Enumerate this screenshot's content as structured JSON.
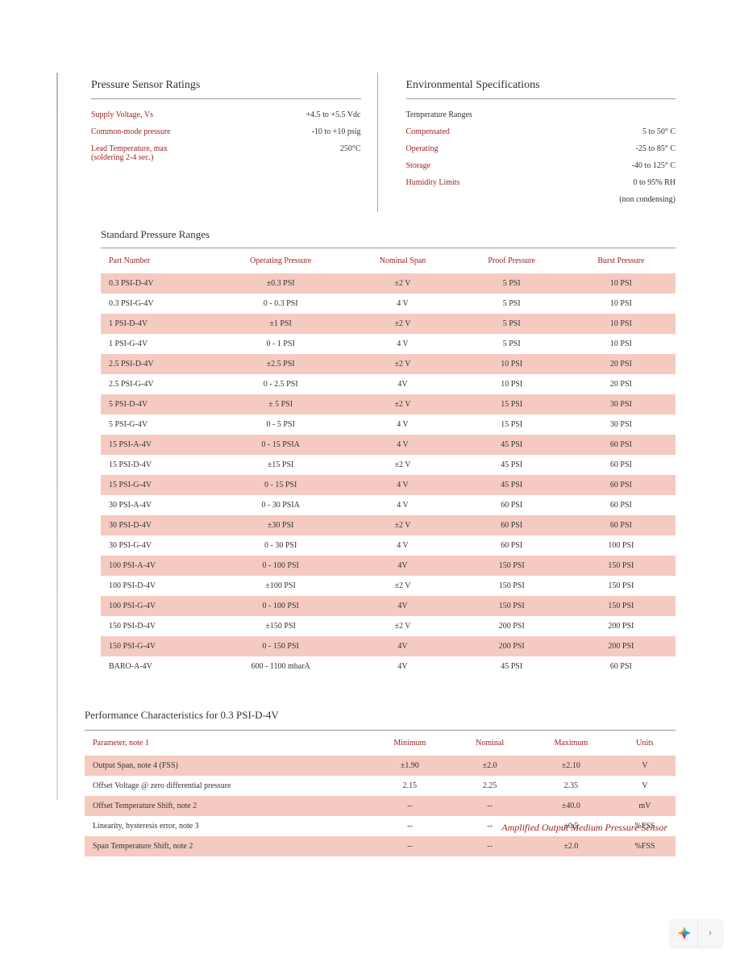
{
  "ratings": {
    "title": "Pressure Sensor Ratings",
    "rows": [
      {
        "label": "Supply Voltage, Vs",
        "value": "+4.5 to +5.5 Vdc"
      },
      {
        "label": "Common-mode pressure",
        "value": "-10 to +10 psig"
      },
      {
        "label": "Lead Temperature, max\n(soldering 2-4 sec.)",
        "value": "250°C"
      }
    ]
  },
  "env": {
    "title": "Environmental Specifications",
    "subhead": "Temperature Ranges",
    "rows": [
      {
        "label": "Compensated",
        "value": "5 to 50° C"
      },
      {
        "label": "Operating",
        "value": "-25 to 85° C"
      },
      {
        "label": "Storage",
        "value": "-40 to 125° C"
      },
      {
        "label": "Humidity Limits",
        "value": "0 to 95% RH"
      }
    ],
    "note": "(non condensing)"
  },
  "ranges": {
    "title": "Standard Pressure Ranges",
    "columns": [
      "Part Number",
      "Operating Pressure",
      "Nominal Span",
      "Proof Pressure",
      "Burst Pressure"
    ],
    "rows": [
      [
        "0.3 PSI-D-4V",
        "±0.3 PSI",
        "±2 V",
        "5 PSI",
        "10 PSI"
      ],
      [
        "0.3 PSI-G-4V",
        "0 - 0.3 PSI",
        "4 V",
        "5 PSI",
        "10 PSI"
      ],
      [
        "1 PSI-D-4V",
        "±1 PSI",
        "±2 V",
        "5 PSI",
        "10 PSI"
      ],
      [
        "1 PSI-G-4V",
        "0 - 1 PSI",
        "4 V",
        "5 PSI",
        "10 PSI"
      ],
      [
        "2.5 PSI-D-4V",
        "±2.5 PSI",
        "±2 V",
        "10 PSI",
        "20 PSI"
      ],
      [
        "2.5 PSI-G-4V",
        "0 - 2.5 PSI",
        "4V",
        "10 PSI",
        "20 PSI"
      ],
      [
        "5 PSI-D-4V",
        "± 5 PSI",
        "±2 V",
        "15 PSI",
        "30 PSI"
      ],
      [
        "5 PSI-G-4V",
        "0 - 5 PSI",
        "4 V",
        "15 PSI",
        "30 PSI"
      ],
      [
        "15 PSI-A-4V",
        "0 - 15 PSIA",
        "4 V",
        "45 PSI",
        "60 PSI"
      ],
      [
        "15 PSI-D-4V",
        "±15 PSI",
        "±2 V",
        "45 PSI",
        "60 PSI"
      ],
      [
        "15 PSI-G-4V",
        "0 - 15 PSI",
        "4 V",
        "45 PSI",
        "60 PSI"
      ],
      [
        "30 PSI-A-4V",
        "0 - 30 PSIA",
        "4 V",
        "60 PSI",
        "60 PSI"
      ],
      [
        "30 PSI-D-4V",
        "±30 PSI",
        "±2 V",
        "60 PSI",
        "60 PSI"
      ],
      [
        "30 PSI-G-4V",
        "0 - 30 PSI",
        "4 V",
        "60 PSI",
        "100 PSI"
      ],
      [
        "100 PSI-A-4V",
        "0 - 100 PSI",
        "4V",
        "150 PSI",
        "150 PSI"
      ],
      [
        "100 PSI-D-4V",
        "±100 PSI",
        "±2 V",
        "150 PSI",
        "150 PSI"
      ],
      [
        "100 PSI-G-4V",
        "0 - 100 PSI",
        "4V",
        "150 PSI",
        "150 PSI"
      ],
      [
        "150 PSI-D-4V",
        "±150 PSI",
        "±2 V",
        "200 PSI",
        "200 PSI"
      ],
      [
        "150 PSI-G-4V",
        "0 - 150 PSI",
        "4V",
        "200 PSI",
        "200 PSI"
      ],
      [
        "BARO-A-4V",
        "600 - 1100 mbarA",
        "4V",
        "45 PSI",
        "60 PSI"
      ]
    ],
    "shaded_indices": [
      0,
      2,
      4,
      6,
      8,
      10,
      12,
      14,
      16,
      18
    ],
    "shade_color": "#f5cbc1"
  },
  "perf": {
    "title": "Performance Characteristics  for 0.3 PSI-D-4V",
    "columns": [
      "Parameter, note 1",
      "Minimum",
      "Nominal",
      "Maximum",
      "Units"
    ],
    "rows": [
      [
        "Output Span, note 4 (FSS)",
        "±1.90",
        "±2.0",
        "±2.10",
        "V"
      ],
      [
        "Offset Voltage @ zero differential pressure",
        "2.15",
        "2.25",
        "2.35",
        "V"
      ],
      [
        "Offset Temperature Shift, note 2",
        "--",
        "--",
        "±40.0",
        "mV"
      ],
      [
        "Linearity, hysteresis error, note 3",
        "--",
        "--",
        "±0.5",
        "%FSS"
      ],
      [
        "Span Temperature Shift, note 2",
        "--",
        "--",
        "±2.0",
        "%FSS"
      ]
    ],
    "shaded_indices": [
      0,
      2,
      4
    ],
    "shade_color": "#f5cbc1"
  },
  "footer": "Amplified Output Medium Pressure Sensor",
  "colors": {
    "accent": "#a02020",
    "text": "#333333",
    "row_shade": "#f5cbc1",
    "border": "#999999"
  }
}
